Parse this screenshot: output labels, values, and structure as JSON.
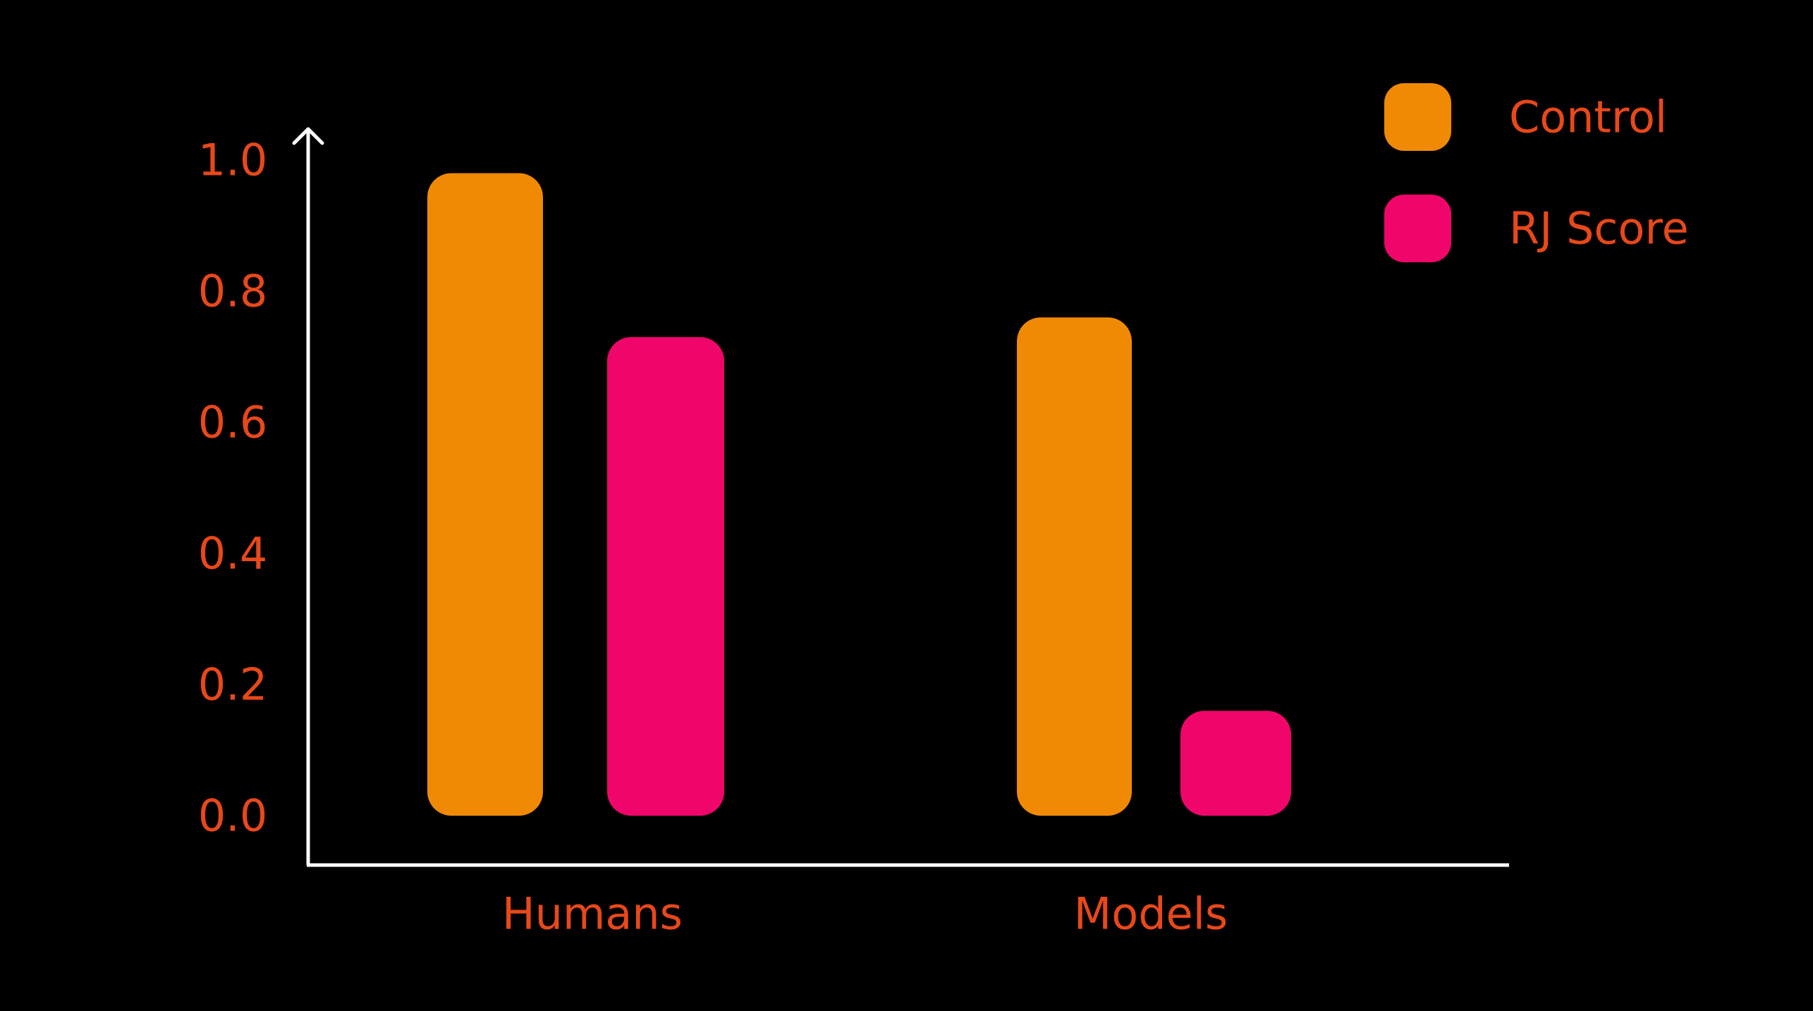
{
  "chart_data": {
    "type": "bar",
    "categories": [
      "Humans",
      "Models"
    ],
    "series": [
      {
        "name": "Control",
        "values": [
          0.98,
          0.76
        ],
        "color": "#F08A04"
      },
      {
        "name": "RJ Score",
        "values": [
          0.73,
          0.16
        ],
        "color": "#F0056A"
      }
    ],
    "yticks": [
      "0.0",
      "0.2",
      "0.4",
      "0.6",
      "0.8",
      "1.0"
    ],
    "ylim": [
      0,
      1.0
    ],
    "grid": false,
    "legend_position": "top-right",
    "text_color": "#E8481A",
    "axis_color": "#FFFFFF",
    "background": "#000000"
  }
}
